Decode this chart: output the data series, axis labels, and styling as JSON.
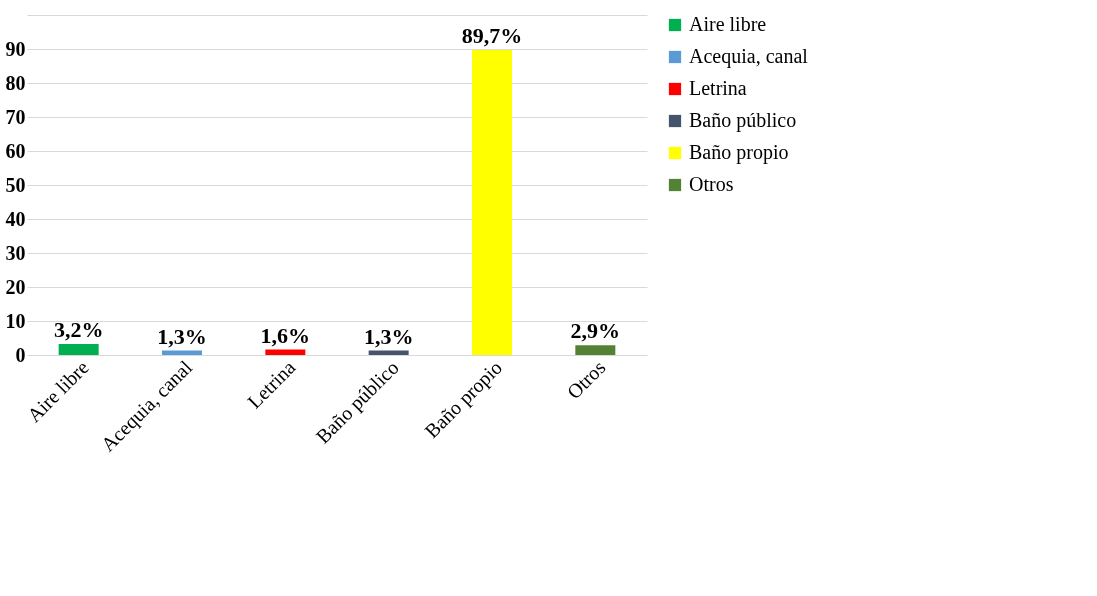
{
  "chart_data": {
    "type": "bar",
    "categories": [
      "Aire libre",
      "Acequia, canal",
      "Letrina",
      "Baño público",
      "Baño propio",
      "Otros"
    ],
    "series": [
      {
        "name": "Aire libre",
        "color": "#00b050",
        "values": [
          3.2,
          null,
          null,
          null,
          null,
          null
        ],
        "value_labels": [
          "3,2%",
          null,
          null,
          null,
          null,
          null
        ]
      },
      {
        "name": "Acequia, canal",
        "color": "#5b9bd5",
        "values": [
          null,
          1.3,
          null,
          null,
          null,
          null
        ],
        "value_labels": [
          null,
          "1,3%",
          null,
          null,
          null,
          null
        ]
      },
      {
        "name": "Letrina",
        "color": "#ff0000",
        "values": [
          null,
          null,
          1.6,
          null,
          null,
          null
        ],
        "value_labels": [
          null,
          null,
          "1,6%",
          null,
          null,
          null
        ]
      },
      {
        "name": "Baño público",
        "color": "#44546a",
        "values": [
          null,
          null,
          null,
          1.3,
          null,
          null
        ],
        "value_labels": [
          null,
          null,
          null,
          "1,3%",
          null,
          null
        ]
      },
      {
        "name": "Baño propio",
        "color": "#ffff00",
        "values": [
          null,
          null,
          null,
          null,
          89.7,
          null
        ],
        "value_labels": [
          null,
          null,
          null,
          null,
          "89,7%",
          null
        ]
      },
      {
        "name": "Otros",
        "color": "#548235",
        "values": [
          null,
          null,
          null,
          null,
          null,
          2.9
        ],
        "value_labels": [
          null,
          null,
          null,
          null,
          null,
          "2,9%"
        ]
      }
    ],
    "ylim": [
      0,
      100
    ],
    "yticks": [
      0,
      10,
      20,
      30,
      40,
      50,
      60,
      70,
      80,
      90,
      {
        "value": 100,
        "label": null
      }
    ],
    "grid": "y",
    "legend": "right"
  }
}
